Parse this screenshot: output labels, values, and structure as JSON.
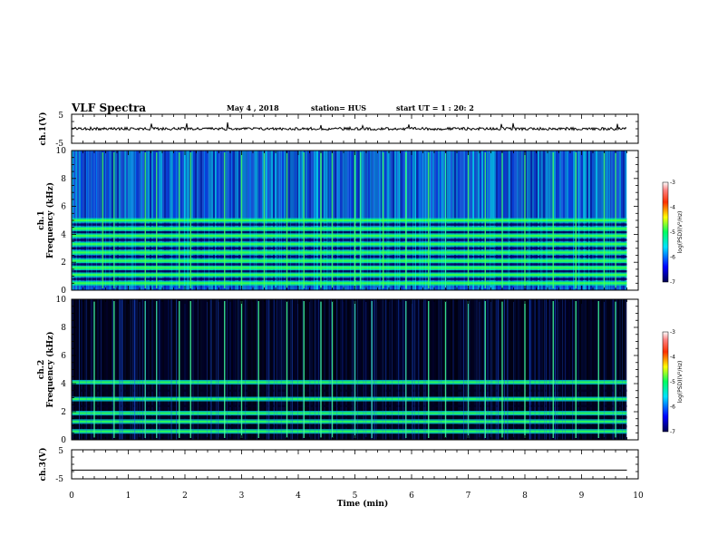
{
  "header": {
    "title": "VLF Spectra",
    "date": "May 4 , 2018",
    "station": "station= HUS",
    "start": "start UT = 1 : 20: 2"
  },
  "chart_data": [
    {
      "type": "line",
      "ylabel": "ch.1(V)",
      "ylim": [
        -5,
        5
      ],
      "yticks": [
        "5",
        "-5"
      ],
      "trace": "noisy signal near y=0 with sporadic spikes"
    },
    {
      "type": "heatmap",
      "ylabel": "ch.1\nFrequency (kHz)",
      "ylim": [
        0,
        10
      ],
      "yticks": [
        "0",
        "2",
        "4",
        "6",
        "8",
        "10"
      ],
      "colorbar": {
        "label": "log(PSD)(V²/Hz)",
        "range": [
          -7,
          -3
        ],
        "ticks": [
          "-3",
          "-4",
          "-5",
          "-6",
          "-7"
        ]
      },
      "bands_khz": [
        0.5,
        1.1,
        1.6,
        2.1,
        2.7,
        3.3,
        3.9,
        4.4,
        5.0
      ],
      "spike_times_min": [
        0.55,
        0.75,
        1.3,
        1.5,
        1.9,
        2.1,
        2.7,
        3.0,
        3.4,
        3.8,
        4.1,
        4.4,
        4.6,
        5.0,
        5.1,
        5.5,
        5.9,
        6.3,
        6.6,
        7.0,
        7.3,
        7.6,
        8.0,
        8.5,
        8.9,
        9.4,
        9.6
      ]
    },
    {
      "type": "heatmap",
      "ylabel": "ch.2\nFrequency (kHz)",
      "ylim": [
        0,
        10
      ],
      "yticks": [
        "0",
        "2",
        "4",
        "6",
        "8",
        "10"
      ],
      "colorbar": {
        "label": "log(PSD)(V²/Hz)",
        "range": [
          -7,
          -3
        ],
        "ticks": [
          "-3",
          "-4",
          "-5",
          "-6",
          "-7"
        ]
      },
      "bands_khz": [
        0.6,
        1.3,
        1.9,
        2.9,
        4.1
      ],
      "spike_times_min": [
        0.4,
        0.75,
        1.3,
        1.5,
        1.9,
        2.1,
        2.7,
        3.0,
        3.3,
        3.8,
        4.1,
        4.4,
        4.6,
        5.0,
        5.3,
        5.9,
        6.3,
        6.6,
        7.0,
        7.3,
        7.6,
        8.0,
        8.5,
        8.9,
        9.3,
        9.6
      ]
    },
    {
      "type": "line",
      "ylabel": "ch.3(V)",
      "ylim": [
        -5,
        5
      ],
      "yticks": [
        "5",
        "-5"
      ],
      "trace": "flat line at y=-2"
    }
  ],
  "xaxis": {
    "label": "Time (min)",
    "ticks": [
      "0",
      "1",
      "2",
      "3",
      "4",
      "5",
      "6",
      "7",
      "8",
      "9",
      "10"
    ],
    "range": [
      0,
      10
    ]
  }
}
